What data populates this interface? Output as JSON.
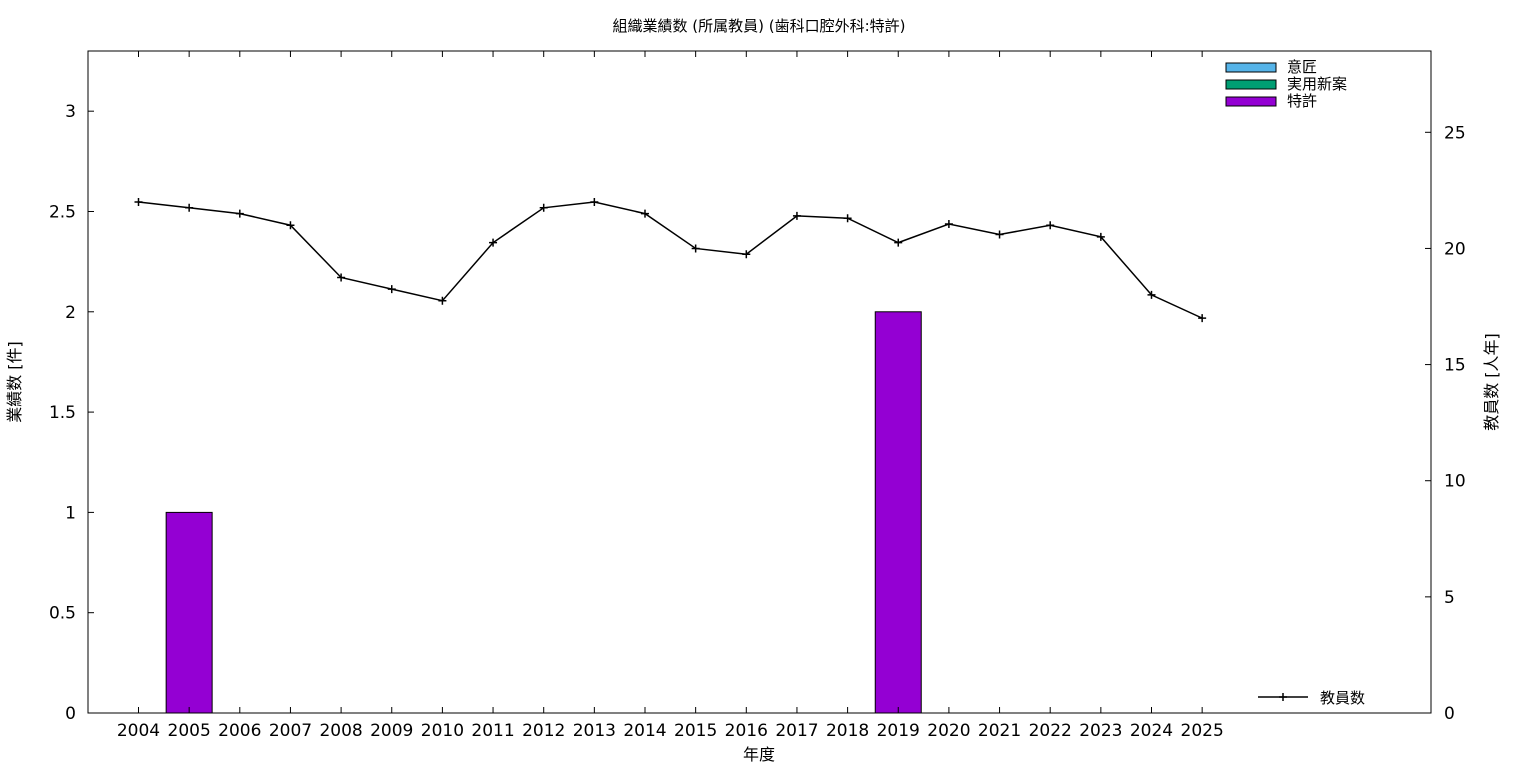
{
  "chart_data": {
    "type": "bar",
    "title": "組織業績数 (所属教員) (歯科口腔外科:特許)",
    "xlabel": "年度",
    "ylabel": "業績数 [件]",
    "y2label": "教員数 [人年]",
    "categories": [
      "2004",
      "2005",
      "2006",
      "2007",
      "2008",
      "2009",
      "2010",
      "2011",
      "2012",
      "2013",
      "2014",
      "2015",
      "2016",
      "2017",
      "2018",
      "2019",
      "2020",
      "2021",
      "2022",
      "2023",
      "2024",
      "2025"
    ],
    "ylim": [
      0,
      3.3
    ],
    "yticks": [
      "0",
      "0.5",
      "1",
      "1.5",
      "2",
      "2.5",
      "3"
    ],
    "y2lim": [
      0,
      28.5
    ],
    "y2ticks": [
      "0",
      "5",
      "10",
      "15",
      "20",
      "25"
    ],
    "series": [
      {
        "name": "意匠",
        "color": "#56b4e9",
        "values": [
          0,
          0,
          0,
          0,
          0,
          0,
          0,
          0,
          0,
          0,
          0,
          0,
          0,
          0,
          0,
          0,
          0,
          0,
          0,
          0,
          0,
          0
        ]
      },
      {
        "name": "実用新案",
        "color": "#009e73",
        "values": [
          0,
          0,
          0,
          0,
          0,
          0,
          0,
          0,
          0,
          0,
          0,
          0,
          0,
          0,
          0,
          0,
          0,
          0,
          0,
          0,
          0,
          0
        ]
      },
      {
        "name": "特許",
        "color": "#9400d3",
        "values": [
          0,
          1,
          0,
          0,
          0,
          0,
          0,
          0,
          0,
          0,
          0,
          0,
          0,
          0,
          0,
          2,
          0,
          0,
          0,
          0,
          0,
          0
        ]
      }
    ],
    "line_series": {
      "name": "教員数",
      "color": "#000000",
      "axis": "right",
      "values": [
        22.0,
        21.75,
        21.5,
        21.0,
        18.75,
        18.25,
        17.75,
        20.25,
        21.75,
        22.0,
        21.5,
        20.0,
        19.75,
        21.4,
        21.3,
        20.25,
        21.05,
        20.6,
        21.0,
        20.5,
        18.0,
        17.0
      ]
    },
    "legend": "top-right",
    "grid": false
  }
}
